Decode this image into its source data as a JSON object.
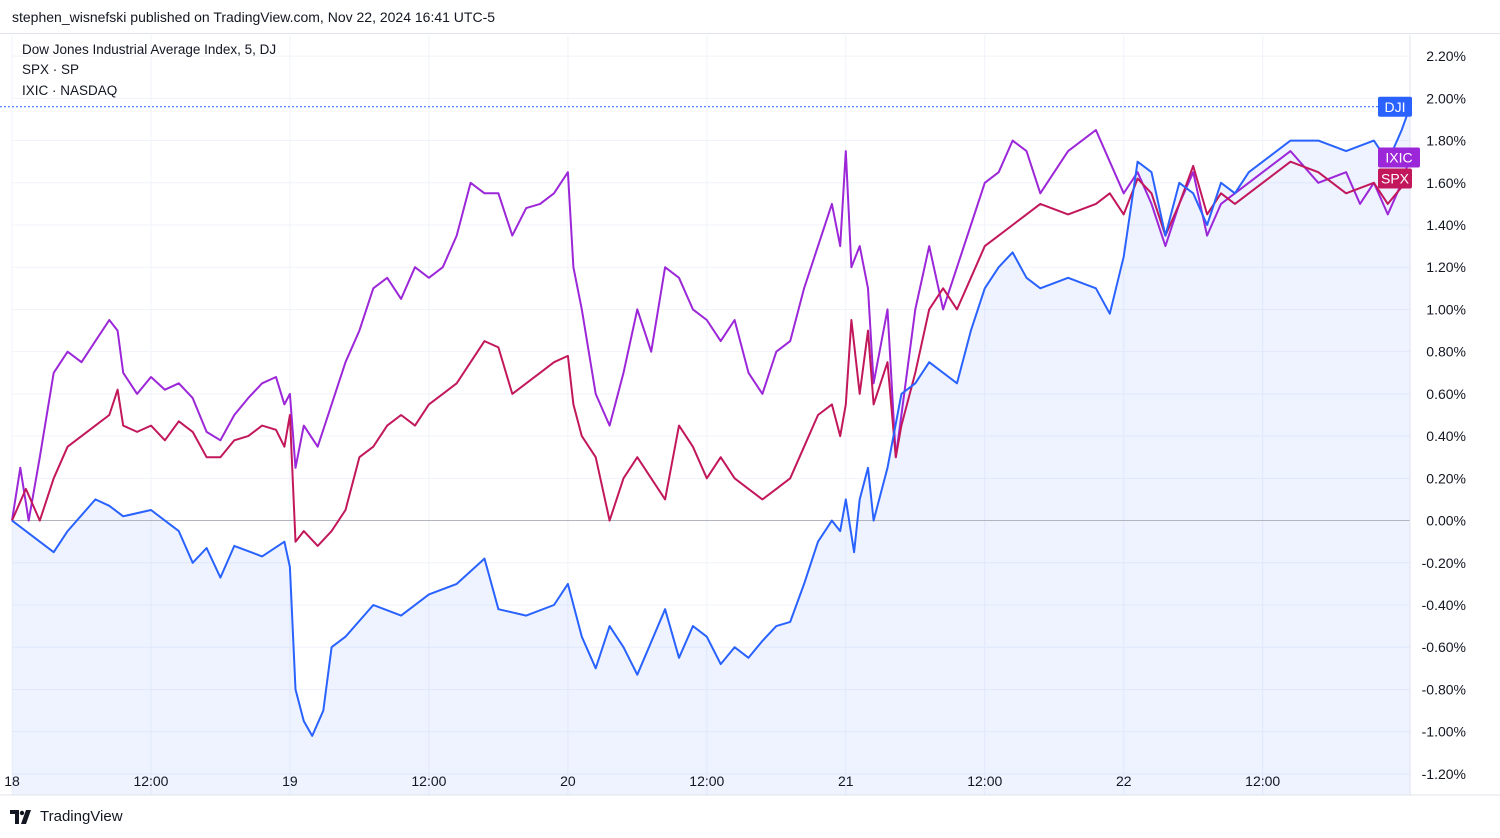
{
  "header": {
    "publish_text": "stephen_wisnefski published on TradingView.com, Nov 22, 2024 16:41 UTC-5"
  },
  "legend": [
    "Dow Jones Industrial Average Index, 5, DJ",
    "SPX · SP",
    "IXIC · NASDAQ"
  ],
  "footer": {
    "brand": "TradingView"
  },
  "chart_data": {
    "type": "line",
    "yaxis": {
      "unit": "%",
      "ticks": [
        "2.20%",
        "2.00%",
        "1.80%",
        "1.60%",
        "1.40%",
        "1.20%",
        "1.00%",
        "0.80%",
        "0.60%",
        "0.40%",
        "0.20%",
        "0.00%",
        "-0.20%",
        "-0.40%",
        "-0.60%",
        "-0.80%",
        "-1.00%",
        "-1.20%"
      ],
      "ylim": [
        -1.3,
        2.3
      ]
    },
    "xaxis": {
      "ticks": [
        "18",
        "12:00",
        "19",
        "12:00",
        "20",
        "12:00",
        "21",
        "12:00",
        "22",
        "12:00"
      ],
      "xlim": [
        0,
        5.03
      ]
    },
    "series": [
      {
        "name": "DJI",
        "color": "#2962ff",
        "last_label": "DJI",
        "last_value": 1.96,
        "points": [
          [
            0.0,
            0.0
          ],
          [
            0.15,
            -0.15
          ],
          [
            0.2,
            -0.05
          ],
          [
            0.3,
            0.1
          ],
          [
            0.35,
            0.07
          ],
          [
            0.4,
            0.02
          ],
          [
            0.5,
            0.05
          ],
          [
            0.55,
            0.0
          ],
          [
            0.6,
            -0.05
          ],
          [
            0.65,
            -0.2
          ],
          [
            0.7,
            -0.13
          ],
          [
            0.75,
            -0.27
          ],
          [
            0.8,
            -0.12
          ],
          [
            0.9,
            -0.17
          ],
          [
            0.98,
            -0.1
          ],
          [
            1.0,
            -0.22
          ],
          [
            1.02,
            -0.8
          ],
          [
            1.05,
            -0.95
          ],
          [
            1.08,
            -1.02
          ],
          [
            1.12,
            -0.9
          ],
          [
            1.15,
            -0.6
          ],
          [
            1.2,
            -0.55
          ],
          [
            1.3,
            -0.4
          ],
          [
            1.4,
            -0.45
          ],
          [
            1.5,
            -0.35
          ],
          [
            1.6,
            -0.3
          ],
          [
            1.7,
            -0.18
          ],
          [
            1.75,
            -0.42
          ],
          [
            1.85,
            -0.45
          ],
          [
            1.95,
            -0.4
          ],
          [
            2.0,
            -0.3
          ],
          [
            2.05,
            -0.55
          ],
          [
            2.1,
            -0.7
          ],
          [
            2.15,
            -0.5
          ],
          [
            2.2,
            -0.6
          ],
          [
            2.25,
            -0.73
          ],
          [
            2.35,
            -0.42
          ],
          [
            2.4,
            -0.65
          ],
          [
            2.45,
            -0.5
          ],
          [
            2.5,
            -0.55
          ],
          [
            2.55,
            -0.68
          ],
          [
            2.6,
            -0.6
          ],
          [
            2.65,
            -0.65
          ],
          [
            2.7,
            -0.57
          ],
          [
            2.75,
            -0.5
          ],
          [
            2.8,
            -0.48
          ],
          [
            2.85,
            -0.3
          ],
          [
            2.9,
            -0.1
          ],
          [
            2.95,
            0.0
          ],
          [
            2.98,
            -0.05
          ],
          [
            3.0,
            0.1
          ],
          [
            3.03,
            -0.15
          ],
          [
            3.05,
            0.1
          ],
          [
            3.08,
            0.25
          ],
          [
            3.1,
            0.0
          ],
          [
            3.15,
            0.25
          ],
          [
            3.2,
            0.6
          ],
          [
            3.25,
            0.65
          ],
          [
            3.3,
            0.75
          ],
          [
            3.4,
            0.65
          ],
          [
            3.45,
            0.9
          ],
          [
            3.5,
            1.1
          ],
          [
            3.55,
            1.2
          ],
          [
            3.6,
            1.27
          ],
          [
            3.65,
            1.15
          ],
          [
            3.7,
            1.1
          ],
          [
            3.8,
            1.15
          ],
          [
            3.9,
            1.1
          ],
          [
            3.95,
            0.98
          ],
          [
            4.0,
            1.25
          ],
          [
            4.05,
            1.7
          ],
          [
            4.1,
            1.65
          ],
          [
            4.15,
            1.35
          ],
          [
            4.2,
            1.6
          ],
          [
            4.25,
            1.55
          ],
          [
            4.3,
            1.4
          ],
          [
            4.35,
            1.6
          ],
          [
            4.4,
            1.55
          ],
          [
            4.45,
            1.65
          ],
          [
            4.5,
            1.7
          ],
          [
            4.6,
            1.8
          ],
          [
            4.7,
            1.8
          ],
          [
            4.8,
            1.75
          ],
          [
            4.9,
            1.8
          ],
          [
            4.95,
            1.7
          ],
          [
            5.0,
            1.85
          ],
          [
            5.03,
            1.96
          ]
        ]
      },
      {
        "name": "SPX",
        "color": "#c2185b",
        "last_label": "SPX",
        "last_value": 1.62,
        "points": [
          [
            0.0,
            0.0
          ],
          [
            0.05,
            0.15
          ],
          [
            0.1,
            0.0
          ],
          [
            0.15,
            0.2
          ],
          [
            0.2,
            0.35
          ],
          [
            0.3,
            0.45
          ],
          [
            0.35,
            0.5
          ],
          [
            0.38,
            0.62
          ],
          [
            0.4,
            0.45
          ],
          [
            0.45,
            0.42
          ],
          [
            0.5,
            0.45
          ],
          [
            0.55,
            0.38
          ],
          [
            0.6,
            0.47
          ],
          [
            0.65,
            0.42
          ],
          [
            0.7,
            0.3
          ],
          [
            0.75,
            0.3
          ],
          [
            0.8,
            0.38
          ],
          [
            0.85,
            0.4
          ],
          [
            0.9,
            0.45
          ],
          [
            0.95,
            0.43
          ],
          [
            0.98,
            0.35
          ],
          [
            1.0,
            0.5
          ],
          [
            1.02,
            -0.1
          ],
          [
            1.05,
            -0.05
          ],
          [
            1.1,
            -0.12
          ],
          [
            1.15,
            -0.05
          ],
          [
            1.2,
            0.05
          ],
          [
            1.25,
            0.3
          ],
          [
            1.3,
            0.35
          ],
          [
            1.35,
            0.45
          ],
          [
            1.4,
            0.5
          ],
          [
            1.45,
            0.45
          ],
          [
            1.5,
            0.55
          ],
          [
            1.55,
            0.6
          ],
          [
            1.6,
            0.65
          ],
          [
            1.65,
            0.75
          ],
          [
            1.7,
            0.85
          ],
          [
            1.75,
            0.82
          ],
          [
            1.8,
            0.6
          ],
          [
            1.9,
            0.7
          ],
          [
            1.95,
            0.75
          ],
          [
            2.0,
            0.78
          ],
          [
            2.02,
            0.55
          ],
          [
            2.05,
            0.4
          ],
          [
            2.1,
            0.3
          ],
          [
            2.15,
            0.0
          ],
          [
            2.2,
            0.2
          ],
          [
            2.25,
            0.3
          ],
          [
            2.3,
            0.2
          ],
          [
            2.35,
            0.1
          ],
          [
            2.4,
            0.45
          ],
          [
            2.45,
            0.35
          ],
          [
            2.5,
            0.2
          ],
          [
            2.55,
            0.3
          ],
          [
            2.6,
            0.2
          ],
          [
            2.65,
            0.15
          ],
          [
            2.7,
            0.1
          ],
          [
            2.75,
            0.15
          ],
          [
            2.8,
            0.2
          ],
          [
            2.85,
            0.35
          ],
          [
            2.9,
            0.5
          ],
          [
            2.95,
            0.55
          ],
          [
            2.98,
            0.4
          ],
          [
            3.0,
            0.55
          ],
          [
            3.02,
            0.95
          ],
          [
            3.05,
            0.6
          ],
          [
            3.08,
            0.9
          ],
          [
            3.1,
            0.55
          ],
          [
            3.15,
            0.75
          ],
          [
            3.18,
            0.3
          ],
          [
            3.2,
            0.45
          ],
          [
            3.25,
            0.7
          ],
          [
            3.3,
            1.0
          ],
          [
            3.35,
            1.1
          ],
          [
            3.4,
            1.0
          ],
          [
            3.45,
            1.15
          ],
          [
            3.5,
            1.3
          ],
          [
            3.55,
            1.35
          ],
          [
            3.6,
            1.4
          ],
          [
            3.65,
            1.45
          ],
          [
            3.7,
            1.5
          ],
          [
            3.8,
            1.45
          ],
          [
            3.9,
            1.5
          ],
          [
            3.95,
            1.55
          ],
          [
            4.0,
            1.45
          ],
          [
            4.05,
            1.62
          ],
          [
            4.1,
            1.55
          ],
          [
            4.15,
            1.35
          ],
          [
            4.2,
            1.5
          ],
          [
            4.25,
            1.68
          ],
          [
            4.3,
            1.45
          ],
          [
            4.35,
            1.55
          ],
          [
            4.4,
            1.5
          ],
          [
            4.5,
            1.6
          ],
          [
            4.6,
            1.7
          ],
          [
            4.7,
            1.65
          ],
          [
            4.8,
            1.55
          ],
          [
            4.9,
            1.6
          ],
          [
            4.95,
            1.5
          ],
          [
            5.0,
            1.58
          ],
          [
            5.03,
            1.62
          ]
        ]
      },
      {
        "name": "IXIC",
        "color": "#9c27d9",
        "last_label": "IXIC",
        "last_value": 1.72,
        "points": [
          [
            0.0,
            0.0
          ],
          [
            0.03,
            0.25
          ],
          [
            0.06,
            0.0
          ],
          [
            0.1,
            0.3
          ],
          [
            0.15,
            0.7
          ],
          [
            0.2,
            0.8
          ],
          [
            0.25,
            0.75
          ],
          [
            0.3,
            0.85
          ],
          [
            0.35,
            0.95
          ],
          [
            0.38,
            0.9
          ],
          [
            0.4,
            0.7
          ],
          [
            0.45,
            0.6
          ],
          [
            0.5,
            0.68
          ],
          [
            0.55,
            0.62
          ],
          [
            0.6,
            0.65
          ],
          [
            0.65,
            0.58
          ],
          [
            0.7,
            0.42
          ],
          [
            0.75,
            0.38
          ],
          [
            0.8,
            0.5
          ],
          [
            0.85,
            0.58
          ],
          [
            0.9,
            0.65
          ],
          [
            0.95,
            0.68
          ],
          [
            0.98,
            0.55
          ],
          [
            1.0,
            0.6
          ],
          [
            1.02,
            0.25
          ],
          [
            1.05,
            0.45
          ],
          [
            1.1,
            0.35
          ],
          [
            1.15,
            0.55
          ],
          [
            1.2,
            0.75
          ],
          [
            1.25,
            0.9
          ],
          [
            1.3,
            1.1
          ],
          [
            1.35,
            1.15
          ],
          [
            1.4,
            1.05
          ],
          [
            1.45,
            1.2
          ],
          [
            1.5,
            1.15
          ],
          [
            1.55,
            1.2
          ],
          [
            1.6,
            1.35
          ],
          [
            1.65,
            1.6
          ],
          [
            1.7,
            1.55
          ],
          [
            1.75,
            1.55
          ],
          [
            1.8,
            1.35
          ],
          [
            1.85,
            1.48
          ],
          [
            1.9,
            1.5
          ],
          [
            1.95,
            1.55
          ],
          [
            2.0,
            1.65
          ],
          [
            2.02,
            1.2
          ],
          [
            2.05,
            1.0
          ],
          [
            2.1,
            0.6
          ],
          [
            2.15,
            0.45
          ],
          [
            2.2,
            0.7
          ],
          [
            2.25,
            1.0
          ],
          [
            2.3,
            0.8
          ],
          [
            2.35,
            1.2
          ],
          [
            2.4,
            1.15
          ],
          [
            2.45,
            1.0
          ],
          [
            2.5,
            0.95
          ],
          [
            2.55,
            0.85
          ],
          [
            2.6,
            0.95
          ],
          [
            2.65,
            0.7
          ],
          [
            2.7,
            0.6
          ],
          [
            2.75,
            0.8
          ],
          [
            2.8,
            0.85
          ],
          [
            2.85,
            1.1
          ],
          [
            2.9,
            1.3
          ],
          [
            2.95,
            1.5
          ],
          [
            2.98,
            1.3
          ],
          [
            3.0,
            1.75
          ],
          [
            3.02,
            1.2
          ],
          [
            3.05,
            1.3
          ],
          [
            3.08,
            1.1
          ],
          [
            3.1,
            0.65
          ],
          [
            3.15,
            1.0
          ],
          [
            3.18,
            0.3
          ],
          [
            3.2,
            0.5
          ],
          [
            3.25,
            1.0
          ],
          [
            3.3,
            1.3
          ],
          [
            3.35,
            1.0
          ],
          [
            3.4,
            1.2
          ],
          [
            3.45,
            1.4
          ],
          [
            3.5,
            1.6
          ],
          [
            3.55,
            1.65
          ],
          [
            3.6,
            1.8
          ],
          [
            3.65,
            1.75
          ],
          [
            3.7,
            1.55
          ],
          [
            3.8,
            1.75
          ],
          [
            3.85,
            1.8
          ],
          [
            3.9,
            1.85
          ],
          [
            3.95,
            1.7
          ],
          [
            4.0,
            1.55
          ],
          [
            4.05,
            1.65
          ],
          [
            4.1,
            1.5
          ],
          [
            4.15,
            1.3
          ],
          [
            4.2,
            1.5
          ],
          [
            4.25,
            1.65
          ],
          [
            4.3,
            1.35
          ],
          [
            4.35,
            1.5
          ],
          [
            4.4,
            1.55
          ],
          [
            4.5,
            1.65
          ],
          [
            4.6,
            1.75
          ],
          [
            4.7,
            1.6
          ],
          [
            4.8,
            1.65
          ],
          [
            4.85,
            1.5
          ],
          [
            4.9,
            1.6
          ],
          [
            4.95,
            1.45
          ],
          [
            5.0,
            1.6
          ],
          [
            5.03,
            1.72
          ]
        ]
      }
    ]
  }
}
